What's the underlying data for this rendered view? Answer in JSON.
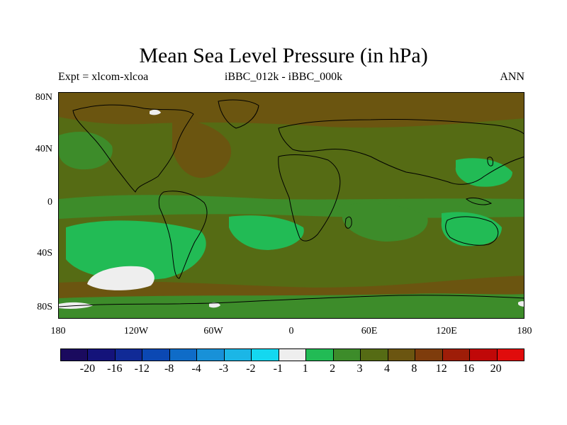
{
  "title": "Mean Sea Level Pressure (in hPa)",
  "subtitle_left": "Expt = xlcom-xlcoa",
  "subtitle_center": "iBBC_012k - iBBC_000k",
  "subtitle_right": "ANN",
  "lat_labels": [
    "80N",
    "40N",
    "0",
    "40S",
    "80S"
  ],
  "lon_labels": [
    "180",
    "120W",
    "60W",
    "0",
    "60E",
    "120E",
    "180"
  ],
  "colorbar": {
    "labels": [
      "-20",
      "-16",
      "-12",
      "-8",
      "-4",
      "-3",
      "-2",
      "-1",
      "1",
      "2",
      "3",
      "4",
      "8",
      "12",
      "16",
      "20"
    ],
    "colors": [
      "#1a0a5e",
      "#14137a",
      "#102a96",
      "#0b48b3",
      "#0f6cc8",
      "#1891d8",
      "#1bb6e6",
      "#14d8f0",
      "#eeeeee",
      "#22bb55",
      "#3d8c2a",
      "#556b14",
      "#6b5510",
      "#7e3c0c",
      "#9e1d08",
      "#c00808",
      "#e00c0c"
    ]
  },
  "colors": {
    "base": "#556b14",
    "green_mid": "#3d8c2a",
    "green_bright": "#22bb55",
    "brown": "#6b5510",
    "brown_dark": "#7e3c0c",
    "white": "#eeeeee"
  }
}
